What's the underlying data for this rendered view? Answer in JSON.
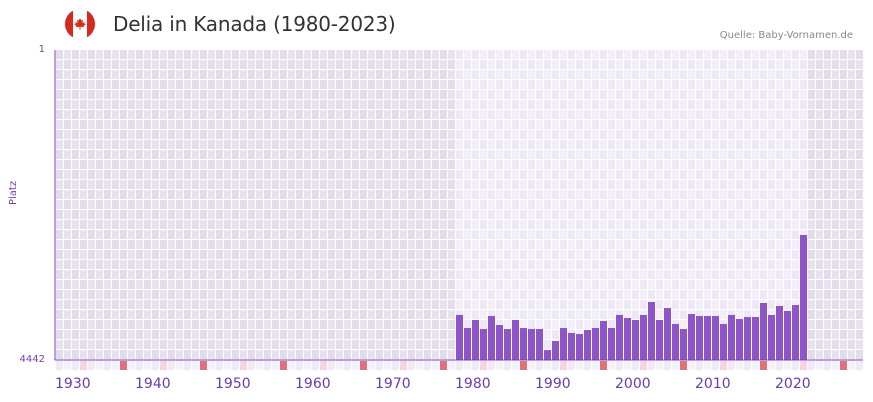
{
  "header": {
    "title": "Delia in Kanada (1980-2023)",
    "source": "Quelle: Baby-Vornamen.de",
    "flag_icon": "canada-flag-icon"
  },
  "colors": {
    "bar": "#8e55c9",
    "axis": "#7b3fb0",
    "marker_decade": "#e2727a",
    "marker_mid": "#f5d3df",
    "bg_outside": "#e4e1ee",
    "bg_inside": "#efecf8",
    "flag_red": "#d52b1e"
  },
  "axes": {
    "y_label": "Platz",
    "y_top": "1",
    "y_bottom": "4442",
    "x_ticks": [
      "1930",
      "1940",
      "1950",
      "1960",
      "1970",
      "1980",
      "1990",
      "2000",
      "2010",
      "2020"
    ]
  },
  "chart_data": {
    "type": "bar",
    "title": "Delia in Kanada (1980-2023)",
    "xlabel": "",
    "ylabel": "Platz",
    "ylim": [
      4442,
      1
    ],
    "y_inverted": true,
    "xlim": [
      1928,
      2029
    ],
    "grid": true,
    "categories": [
      1980,
      1981,
      1982,
      1983,
      1984,
      1985,
      1986,
      1987,
      1988,
      1989,
      1990,
      1991,
      1992,
      1993,
      1994,
      1995,
      1996,
      1997,
      1998,
      1999,
      2000,
      2001,
      2002,
      2003,
      2004,
      2005,
      2006,
      2007,
      2008,
      2009,
      2010,
      2011,
      2012,
      2013,
      2014,
      2015,
      2016,
      2017,
      2018,
      2019,
      2020,
      2021,
      2022,
      2023
    ],
    "values": [
      3797,
      3984,
      3869,
      3998,
      3812,
      3941,
      3998,
      3869,
      3984,
      3998,
      3998,
      4299,
      4170,
      3984,
      4055,
      4070,
      4012,
      3984,
      3883,
      3984,
      3797,
      3840,
      3869,
      3797,
      3611,
      3869,
      3697,
      3926,
      3998,
      3783,
      3812,
      3812,
      3812,
      3926,
      3797,
      3855,
      3826,
      3826,
      3625,
      3797,
      3668,
      3740,
      3654,
      2651
    ],
    "legend": []
  }
}
